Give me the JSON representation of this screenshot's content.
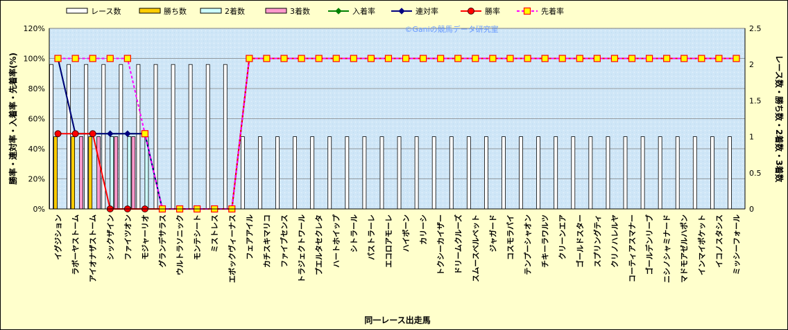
{
  "chart_data": {
    "type": "bar",
    "watermark": "©Ganiの競馬データ研究室",
    "xlabel": "同一レース出走馬",
    "ylabel_left": "勝率・連対率・入着率・先着率(%)",
    "ylabel_right": "レース数・勝ち数・2着数・3着数",
    "ylim_left": [
      0,
      120
    ],
    "yticks_left": [
      "0%",
      "20%",
      "40%",
      "60%",
      "80%",
      "100%",
      "120%"
    ],
    "ylim_right": [
      0,
      2.5
    ],
    "yticks_right": [
      "0",
      "0.5",
      "1",
      "1.5",
      "2",
      "2.5"
    ],
    "grid": true,
    "legend_position": "top",
    "categories": [
      "イグジション",
      "ラボーヤストーム",
      "アイオナザストーム",
      "シックザイン",
      "ファイツオン",
      "モジャーリオ",
      "グランデサラス",
      "ウルトラソニック",
      "モンテシート",
      "ミストレス",
      "エボックヴィーナス",
      "フェアアイル",
      "カチスキマリコ",
      "ファイブセンス",
      "トラジェクトワール",
      "プエルタセクレタ",
      "ハートホイップ",
      "シトラール",
      "パストラーレ",
      "エコロアモーレ",
      "ハイボーン",
      "カリーシ",
      "トクシーカイザー",
      "ドリームクルーズ",
      "スムースベルベット",
      "ジャガード",
      "コスモラパイ",
      "テンプーシャオン",
      "チキーラワルツ",
      "クリーンエア",
      "ゴールドスター",
      "スプリングティ",
      "クリノハレルヤ",
      "コーティアスマナー",
      "ゴールデンリーブ",
      "ニシノシャミナード",
      "マドモアゼルハポン",
      "インマイポケット",
      "イコノスタシス",
      "ミッシーフォール"
    ],
    "series": [
      {
        "name": "レース数",
        "kind": "bar",
        "axis": "right",
        "color": "#FFFFFF",
        "values": [
          2,
          2,
          2,
          2,
          2,
          2,
          2,
          2,
          2,
          2,
          2,
          1,
          1,
          1,
          1,
          1,
          1,
          1,
          1,
          1,
          1,
          1,
          1,
          1,
          1,
          1,
          1,
          1,
          1,
          1,
          1,
          1,
          1,
          1,
          1,
          1,
          1,
          1,
          1,
          1
        ]
      },
      {
        "name": "勝ち数",
        "kind": "bar",
        "axis": "right",
        "color": "#FFCC00",
        "values": [
          1,
          1,
          1,
          0,
          0,
          0,
          0,
          0,
          0,
          0,
          0,
          0,
          0,
          0,
          0,
          0,
          0,
          0,
          0,
          0,
          0,
          0,
          0,
          0,
          0,
          0,
          0,
          0,
          0,
          0,
          0,
          0,
          0,
          0,
          0,
          0,
          0,
          0,
          0,
          0
        ]
      },
      {
        "name": "2着数",
        "kind": "bar",
        "axis": "right",
        "color": "#CCFFFF",
        "values": [
          0,
          0,
          0,
          1,
          1,
          1,
          0,
          0,
          0,
          0,
          0,
          0,
          0,
          0,
          0,
          0,
          0,
          0,
          0,
          0,
          0,
          0,
          0,
          0,
          0,
          0,
          0,
          0,
          0,
          0,
          0,
          0,
          0,
          0,
          0,
          0,
          0,
          0,
          0,
          0
        ]
      },
      {
        "name": "3着数",
        "kind": "bar",
        "axis": "right",
        "color": "#FF99CC",
        "values": [
          0,
          1,
          1,
          1,
          1,
          0,
          0,
          0,
          0,
          0,
          0,
          0,
          0,
          0,
          0,
          0,
          0,
          0,
          0,
          0,
          0,
          0,
          0,
          0,
          0,
          0,
          0,
          0,
          0,
          0,
          0,
          0,
          0,
          0,
          0,
          0,
          0,
          0,
          0,
          0
        ]
      },
      {
        "name": "入着率",
        "kind": "line",
        "axis": "left",
        "color": "#008000",
        "marker": "diamond",
        "values": [
          100,
          50,
          50,
          50,
          50,
          50,
          0,
          0,
          0,
          0,
          0,
          100,
          100,
          100,
          100,
          100,
          100,
          100,
          100,
          100,
          100,
          100,
          100,
          100,
          100,
          100,
          100,
          100,
          100,
          100,
          100,
          100,
          100,
          100,
          100,
          100,
          100,
          100,
          100,
          100
        ]
      },
      {
        "name": "連対率",
        "kind": "line",
        "axis": "left",
        "color": "#000080",
        "marker": "diamond",
        "values": [
          100,
          50,
          50,
          50,
          50,
          50,
          0,
          0,
          0,
          0,
          0,
          100,
          100,
          100,
          100,
          100,
          100,
          100,
          100,
          100,
          100,
          100,
          100,
          100,
          100,
          100,
          100,
          100,
          100,
          100,
          100,
          100,
          100,
          100,
          100,
          100,
          100,
          100,
          100,
          100
        ]
      },
      {
        "name": "勝率",
        "kind": "line",
        "axis": "left",
        "color": "#FF0000",
        "marker": "circle",
        "values": [
          50,
          50,
          50,
          0,
          0,
          0,
          0,
          0,
          0,
          0,
          0,
          100,
          100,
          100,
          100,
          100,
          100,
          100,
          100,
          100,
          100,
          100,
          100,
          100,
          100,
          100,
          100,
          100,
          100,
          100,
          100,
          100,
          100,
          100,
          100,
          100,
          100,
          100,
          100,
          100
        ]
      },
      {
        "name": "先着率",
        "kind": "line",
        "axis": "left",
        "color": "#FF00FF",
        "marker": "square",
        "dashed": true,
        "values": [
          100,
          100,
          100,
          100,
          100,
          50,
          0,
          0,
          0,
          0,
          0,
          100,
          100,
          100,
          100,
          100,
          100,
          100,
          100,
          100,
          100,
          100,
          100,
          100,
          100,
          100,
          100,
          100,
          100,
          100,
          100,
          100,
          100,
          100,
          100,
          100,
          100,
          100,
          100,
          100
        ]
      }
    ]
  }
}
